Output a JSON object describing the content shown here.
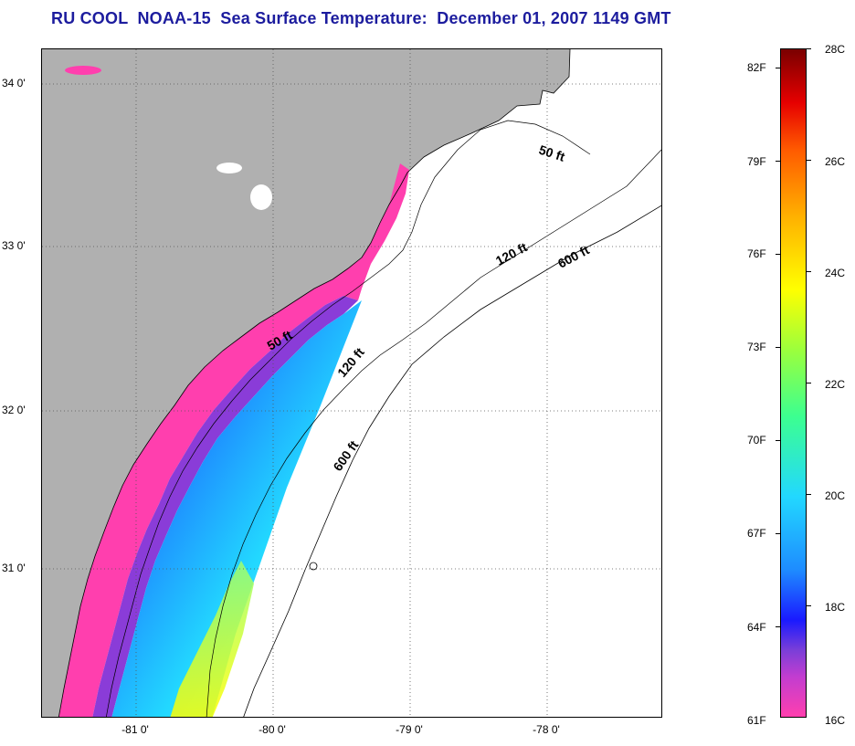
{
  "title": "RU COOL  NOAA-15  Sea Surface Temperature:  December 01, 2007 1149 GMT",
  "map": {
    "lat_labels": [
      "34 0'",
      "33 0'",
      "32 0'",
      "31 0'"
    ],
    "lon_labels": [
      "-81 0'",
      "-80 0'",
      "-79 0'",
      "-78 0'"
    ],
    "contour_labels": [
      "50 ft",
      "120 ft",
      "600 ft",
      "50 ft",
      "120 ft",
      "600 ft"
    ],
    "colors": {
      "land": "#b0b0b0",
      "sst_16C": "#ff3fae",
      "sst_17C": "#8a3cd8",
      "sst_18C": "#1a1aff",
      "sst_19C": "#1e8cff",
      "sst_20C": "#22d8ff",
      "sst_22C": "#3cff70",
      "sst_24C": "#ffff00"
    }
  },
  "colorbar": {
    "fahrenheit": [
      "82F",
      "79F",
      "76F",
      "73F",
      "70F",
      "67F",
      "64F",
      "61F"
    ],
    "celsius": [
      "28C",
      "26C",
      "24C",
      "22C",
      "20C",
      "18C",
      "16C"
    ],
    "range_c": [
      16,
      28
    ]
  }
}
